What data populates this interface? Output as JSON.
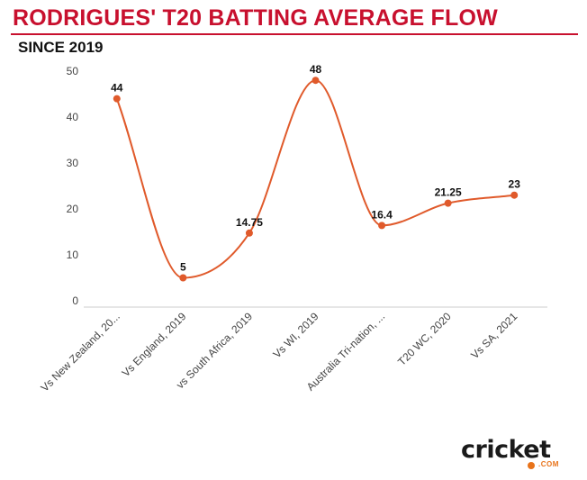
{
  "header": {
    "title": "RODRIGUES' T20 BATTING AVERAGE FLOW",
    "subtitle": "SINCE 2019"
  },
  "brand": {
    "logo_text": "cricket",
    "logo_suffix": ".COM"
  },
  "colors": {
    "title": "#c8102e",
    "line": "#e05a2b",
    "marker": "#e05a2b",
    "axis_text": "#444444",
    "baseline": "#cccccc"
  },
  "chart_data": {
    "type": "line",
    "title": "RODRIGUES' T20 BATTING AVERAGE FLOW",
    "subtitle": "SINCE 2019",
    "xlabel": "",
    "ylabel": "",
    "categories": [
      "Vs New Zealand, 20...",
      "Vs England, 2019",
      "vs South Africa, 2019",
      "Vs WI, 2019",
      "Australia Tri-nation, ...",
      "T20 WC, 2020",
      "Vs SA, 2021"
    ],
    "values": [
      44,
      5,
      14.75,
      48,
      16.4,
      21.25,
      23
    ],
    "data_labels": [
      "44",
      "5",
      "14.75",
      "48",
      "16.4",
      "21.25",
      "23"
    ],
    "ylim": [
      0,
      50
    ],
    "yticks": [
      0,
      10,
      20,
      30,
      40,
      50
    ],
    "smooth": true,
    "grid": false,
    "legend": "none"
  }
}
